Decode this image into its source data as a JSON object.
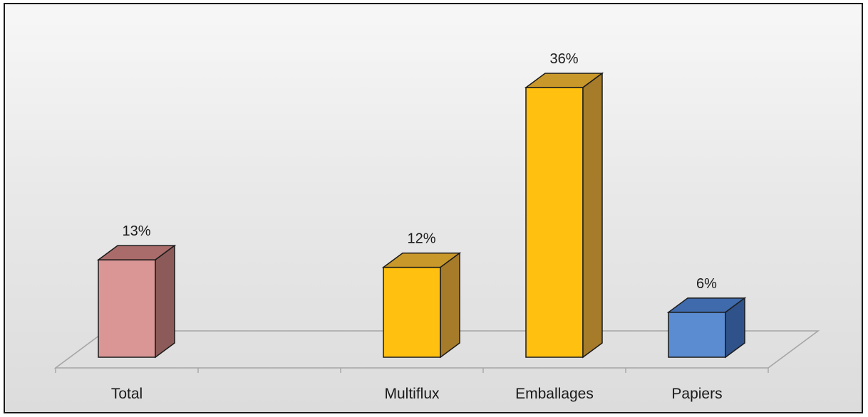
{
  "chart_data": {
    "type": "bar",
    "title": "",
    "xlabel": "",
    "ylabel": "",
    "categories": [
      "Total",
      "",
      "Multiflux",
      "Emballages",
      "Papiers"
    ],
    "values": [
      13,
      null,
      12,
      36,
      6
    ],
    "data_labels": [
      "13%",
      "",
      "12%",
      "36%",
      "6%"
    ],
    "unit": "%",
    "ylim": [
      0,
      40
    ],
    "grid": false,
    "legend": "none",
    "bar_colors": {
      "front": [
        "#da9694",
        null,
        "#ffc010",
        "#ffc010",
        "#5b8bd0"
      ],
      "top": [
        "#a96c6a",
        null,
        "#c9982a",
        "#c9982a",
        "#3f6aab"
      ],
      "side": [
        "#8c5b59",
        null,
        "#a67b2a",
        "#a67b2a",
        "#2f528a"
      ]
    },
    "floor_color": "#a6a6a6",
    "edge_color": "#1a1a1a"
  }
}
